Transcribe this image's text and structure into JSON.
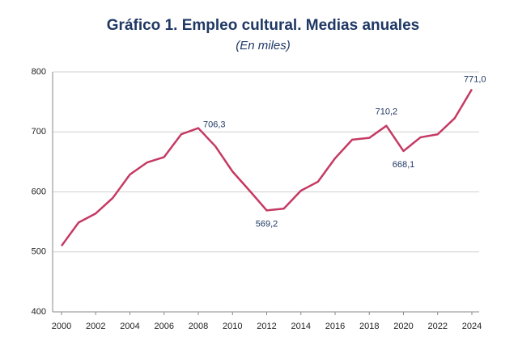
{
  "chart_data": {
    "type": "line",
    "title": "Gráfico 1. Empleo cultural. Medias anuales",
    "subtitle": "(En miles)",
    "x": [
      2000,
      2001,
      2002,
      2003,
      2004,
      2005,
      2006,
      2007,
      2008,
      2009,
      2010,
      2011,
      2012,
      2013,
      2014,
      2015,
      2016,
      2017,
      2018,
      2019,
      2020,
      2021,
      2022,
      2023,
      2024
    ],
    "series": [
      {
        "color": "#c53a63",
        "values": [
          510,
          549,
          564,
          590,
          629,
          649,
          658,
          696,
          706.3,
          676,
          634,
          602,
          569.2,
          572,
          602,
          617,
          656,
          687,
          690,
          710.2,
          668.1,
          691,
          696,
          723,
          771.0
        ],
        "value_labels": [
          null,
          null,
          null,
          null,
          null,
          null,
          null,
          null,
          "706,3",
          null,
          null,
          null,
          "569,2",
          null,
          null,
          null,
          null,
          null,
          null,
          "710,2",
          "668,1",
          null,
          null,
          null,
          "771,0"
        ]
      }
    ],
    "xlim": [
      2000,
      2024
    ],
    "xticks": [
      2000,
      2002,
      2004,
      2006,
      2008,
      2010,
      2012,
      2014,
      2016,
      2018,
      2020,
      2022,
      2024
    ],
    "ylim": [
      400,
      800
    ],
    "yticks": [
      400,
      500,
      600,
      700,
      800
    ],
    "grid": true
  }
}
